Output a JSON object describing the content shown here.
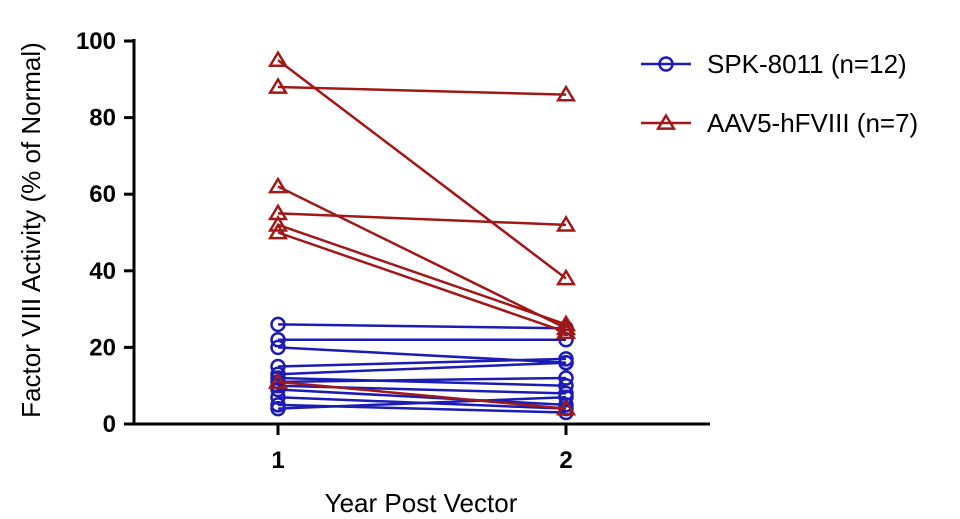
{
  "chart_data": {
    "type": "line",
    "xlabel": "Year Post Vector",
    "ylabel": "Factor VIII Activity (% of Normal)",
    "x_categories": [
      "1",
      "2"
    ],
    "xlim": [
      0.5,
      2.5
    ],
    "ylim": [
      0,
      100
    ],
    "yticks": [
      0,
      20,
      40,
      60,
      80,
      100
    ],
    "grid": false,
    "legend_position": "top-right",
    "series": [
      {
        "name": "SPK-8011 (n=12)",
        "marker": "circle",
        "color": "#1c1cb4",
        "subjects": [
          [
            26,
            25
          ],
          [
            22,
            22
          ],
          [
            20,
            16
          ],
          [
            15,
            17
          ],
          [
            13,
            16
          ],
          [
            12,
            10
          ],
          [
            11,
            12
          ],
          [
            10,
            8
          ],
          [
            9,
            5
          ],
          [
            7,
            4
          ],
          [
            5,
            3
          ],
          [
            4,
            7
          ]
        ]
      },
      {
        "name": "AAV5-hFVIII (n=7)",
        "marker": "triangle",
        "color": "#a01818",
        "subjects": [
          [
            95,
            38
          ],
          [
            88,
            86
          ],
          [
            62,
            25
          ],
          [
            55,
            52
          ],
          [
            52,
            26
          ],
          [
            50,
            24
          ],
          [
            11,
            4
          ]
        ]
      }
    ]
  }
}
